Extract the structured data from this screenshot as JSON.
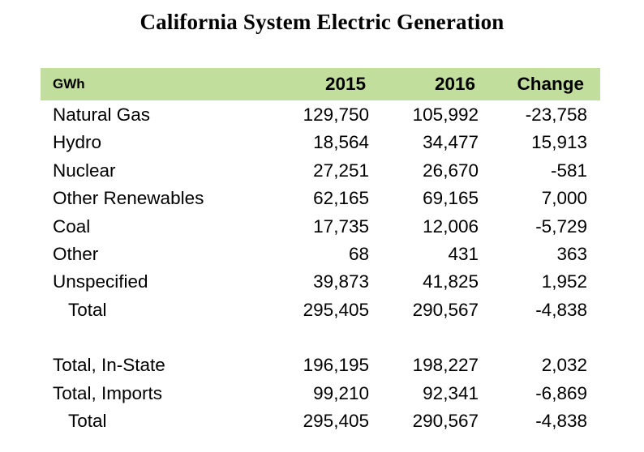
{
  "title": "California System Electric Generation",
  "header": {
    "unit": "GWh",
    "col_2015": "2015",
    "col_2016": "2016",
    "col_change": "Change"
  },
  "rows": [
    {
      "label": "Natural Gas",
      "y2015": "129,750",
      "y2016": "105,992",
      "change": "-23,758"
    },
    {
      "label": "Hydro",
      "y2015": "18,564",
      "y2016": "34,477",
      "change": "15,913"
    },
    {
      "label": "Nuclear",
      "y2015": "27,251",
      "y2016": "26,670",
      "change": "-581"
    },
    {
      "label": "Other Renewables",
      "y2015": "62,165",
      "y2016": "69,165",
      "change": "7,000"
    },
    {
      "label": "Coal",
      "y2015": "17,735",
      "y2016": "12,006",
      "change": "-5,729"
    },
    {
      "label": "Other",
      "y2015": "68",
      "y2016": "431",
      "change": "363"
    },
    {
      "label": "Unspecified",
      "y2015": "39,873",
      "y2016": "41,825",
      "change": "1,952"
    },
    {
      "label": "Total",
      "y2015": "295,405",
      "y2016": "290,567",
      "change": "-4,838"
    }
  ],
  "summary_rows": [
    {
      "label": "Total, In-State",
      "y2015": "196,195",
      "y2016": "198,227",
      "change": "2,032"
    },
    {
      "label": "Total, Imports",
      "y2015": "99,210",
      "y2016": "92,341",
      "change": "-6,869"
    },
    {
      "label": "Total",
      "y2015": "295,405",
      "y2016": "290,567",
      "change": "-4,838"
    }
  ]
}
